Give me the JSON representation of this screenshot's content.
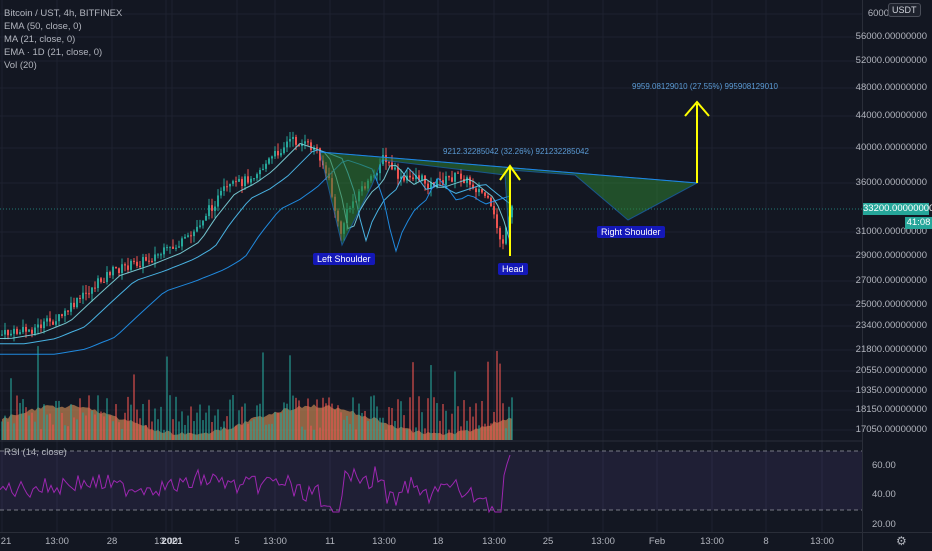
{
  "legend": {
    "title": "Bitcoin / UST, 4h, BITFINEX",
    "ema50": "EMA (50, close, 0)",
    "ma21": "MA (21, close, 0)",
    "ema1d": "EMA · 1D (21, close, 0)",
    "vol": "Vol (20)",
    "rsi": "RSI (14, close)"
  },
  "price_axis": {
    "currency": "USDT",
    "labels": [
      {
        "text": "6000",
        "price": 60000
      },
      {
        "text": "56000.00000000",
        "price": 56000
      },
      {
        "text": "52000.00000000",
        "price": 52000
      },
      {
        "text": "48000.00000000",
        "price": 48000
      },
      {
        "text": "44000.00000000",
        "price": 44000
      },
      {
        "text": "40000.00000000",
        "price": 40000
      },
      {
        "text": "36000.00000000",
        "price": 36000
      },
      {
        "text": "31000.00000000",
        "price": 31000
      },
      {
        "text": "29000.00000000",
        "price": 29000
      },
      {
        "text": "27000.00000000",
        "price": 27000
      },
      {
        "text": "25000.00000000",
        "price": 25000
      },
      {
        "text": "23400.00000000",
        "price": 23400
      },
      {
        "text": "21800.00000000",
        "price": 21800
      },
      {
        "text": "20550.00000000",
        "price": 20550
      },
      {
        "text": "19350.00000000",
        "price": 19350
      },
      {
        "text": "18150.00000000",
        "price": 18150
      },
      {
        "text": "17050.00000000",
        "price": 17050
      }
    ],
    "current_price": "33200.00000000",
    "countdown": "41:08"
  },
  "rsi_axis": [
    "60.00",
    "40.00",
    "20.00"
  ],
  "time_axis": [
    {
      "text": "21",
      "bold": false
    },
    {
      "text": "13:00",
      "bold": false
    },
    {
      "text": "28",
      "bold": false
    },
    {
      "text": "13:00",
      "bold": false
    },
    {
      "text": "2021",
      "bold": true
    },
    {
      "text": "5",
      "bold": false
    },
    {
      "text": "13:00",
      "bold": false
    },
    {
      "text": "11",
      "bold": false
    },
    {
      "text": "13:00",
      "bold": false
    },
    {
      "text": "18",
      "bold": false
    },
    {
      "text": "13:00",
      "bold": false
    },
    {
      "text": "25",
      "bold": false
    },
    {
      "text": "13:00",
      "bold": false
    },
    {
      "text": "Feb",
      "bold": false
    },
    {
      "text": "13:00",
      "bold": false
    },
    {
      "text": "8",
      "bold": false
    },
    {
      "text": "13:00",
      "bold": false
    }
  ],
  "annotations": {
    "left_shoulder": "Left Shoulder",
    "head": "Head",
    "right_shoulder": "Right Shoulder",
    "target1": "9212.32285042 (32.26%) 9212322850­42",
    "target2": "9959.08129010 (27.55%) 995908129010"
  },
  "colors": {
    "background": "#131722",
    "up_candle": "#26a69a",
    "down_candle": "#ef5350",
    "pattern_fill": "#1b5e20",
    "arrow": "#ffff00",
    "label_bg": "#1418b8",
    "rsi_line": "#9c27b0",
    "volume_area": "#f4a460"
  },
  "settings_icon": "gear-icon"
}
